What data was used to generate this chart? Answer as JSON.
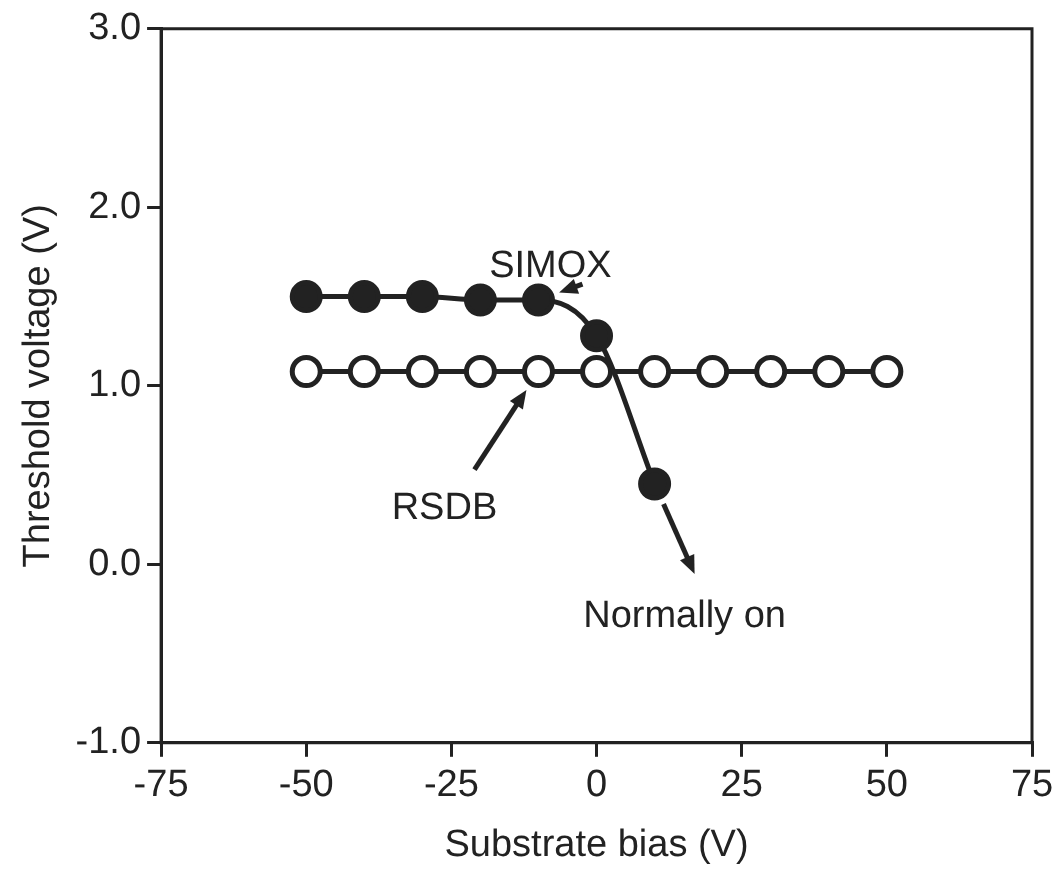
{
  "chart_data": {
    "type": "line",
    "xlabel": "Substrate bias (V)",
    "ylabel": "Threshold voltage (V)",
    "xlim": [
      -75,
      75
    ],
    "xticks": [
      -75,
      -50,
      -25,
      0,
      25,
      50,
      75
    ],
    "ylim": [
      -1.0,
      3.0
    ],
    "yticks": [
      {
        "value": -1,
        "label": "-1.0"
      },
      {
        "value": 0,
        "label": "0.0"
      },
      {
        "value": 1,
        "label": "1.0"
      },
      {
        "value": 2,
        "label": "2.0"
      },
      {
        "value": 3,
        "label": "3.0"
      }
    ],
    "series": [
      {
        "color": "#222222",
        "x": [
          -50,
          -40,
          -30,
          -20,
          -10,
          0,
          10
        ],
        "values": [
          1.5,
          1.5,
          1.5,
          1.48,
          1.48,
          1.28,
          0.45
        ]
      },
      {
        "color": "#222222",
        "x": [
          -50,
          -40,
          -30,
          -20,
          -10,
          0,
          10,
          20,
          30,
          40,
          50
        ],
        "values": [
          1.08,
          1.08,
          1.08,
          1.08,
          1.08,
          1.08,
          1.08,
          1.08,
          1.08,
          1.08,
          1.08
        ]
      }
    ],
    "annotations": [
      "SIMOX",
      "RSDB",
      {
        "text": "Normally on",
        "x": 10,
        "y": 0.45
      }
    ],
    "marker": "circle",
    "grid": false,
    "legend": false
  }
}
